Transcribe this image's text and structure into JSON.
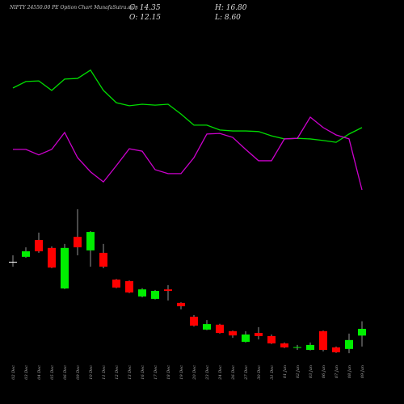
{
  "chart_data": {
    "type": "candlestick",
    "title": "NIFTY 24550.00 PE Option Chart MunafaSutra.com",
    "ohlc_labels": [
      "C: 14.35",
      "H: 16.80",
      "O: 12.15",
      "L: 8.60"
    ],
    "categories": [
      "02 Dec",
      "03 Dec",
      "04 Dec",
      "05 Dec",
      "06 Dec",
      "09 Dec",
      "10 Dec",
      "11 Dec",
      "12 Dec",
      "13 Dec",
      "16 Dec",
      "17 Dec",
      "18 Dec",
      "19 Dec",
      "20 Dec",
      "23 Dec",
      "24 Dec",
      "26 Dec",
      "27 Dec",
      "30 Dec",
      "31 Dec",
      "01 Jan",
      "02 Jan",
      "03 Jan",
      "06 Jan",
      "07 Jan",
      "08 Jan",
      "09 Jan"
    ],
    "open": [
      36.2,
      37.8,
      43.3,
      40.7,
      27.5,
      44.3,
      39.9,
      39.1,
      30.4,
      29.9,
      24.9,
      24.1,
      27.2,
      22.8,
      18.3,
      14.1,
      15.7,
      13.6,
      10.1,
      13.0,
      12.0,
      9.6,
      8.3,
      7.5,
      13.6,
      8.3,
      7.8,
      12.15
    ],
    "high": [
      38.3,
      40.9,
      45.7,
      41.2,
      42.0,
      53.3,
      46.2,
      42.0,
      30.6,
      30.1,
      27.6,
      27.0,
      28.6,
      23.0,
      18.8,
      17.2,
      16.0,
      13.8,
      13.6,
      14.9,
      12.5,
      9.9,
      9.1,
      9.9,
      13.8,
      8.6,
      12.8,
      16.8
    ],
    "low": [
      34.6,
      37.5,
      39.1,
      34.1,
      27.3,
      38.3,
      34.6,
      34.1,
      27.6,
      26.0,
      24.6,
      23.9,
      23.6,
      20.7,
      15.1,
      13.9,
      12.8,
      11.4,
      9.9,
      10.9,
      9.4,
      8.1,
      7.5,
      7.3,
      7.0,
      6.5,
      6.4,
      8.6
    ],
    "close": [
      36.2,
      39.6,
      39.6,
      34.3,
      40.7,
      40.9,
      45.9,
      34.6,
      27.8,
      26.2,
      27.2,
      26.7,
      26.7,
      21.7,
      15.4,
      15.9,
      13.0,
      12.2,
      12.5,
      12.0,
      9.6,
      8.3,
      8.4,
      9.1,
      7.5,
      6.7,
      10.7,
      14.35
    ],
    "up_color": "#00ee00",
    "down_color": "#ff0000",
    "lines": [
      {
        "color": "#00dd00",
        "values": [
          92.8,
          94.9,
          95.1,
          92.0,
          95.7,
          95.9,
          98.6,
          92.0,
          88.0,
          87.0,
          87.5,
          87.2,
          87.5,
          84.3,
          80.7,
          80.7,
          79.1,
          78.8,
          78.8,
          78.6,
          77.2,
          76.2,
          76.4,
          76.2,
          75.7,
          75.1,
          77.8,
          79.9
        ]
      },
      {
        "color": "#cc00cc",
        "values": [
          72.8,
          72.8,
          71.0,
          72.8,
          78.3,
          70.1,
          65.5,
          62.2,
          67.5,
          73.0,
          72.2,
          66.2,
          64.9,
          64.9,
          70.1,
          77.8,
          78.0,
          76.7,
          72.8,
          69.1,
          69.1,
          76.2,
          76.4,
          83.3,
          79.9,
          77.5,
          76.2,
          59.6
        ]
      }
    ]
  }
}
